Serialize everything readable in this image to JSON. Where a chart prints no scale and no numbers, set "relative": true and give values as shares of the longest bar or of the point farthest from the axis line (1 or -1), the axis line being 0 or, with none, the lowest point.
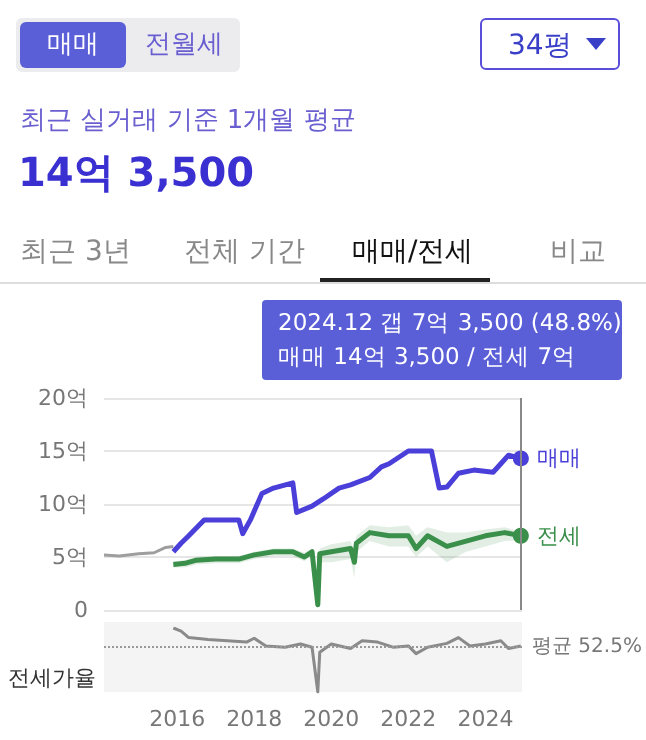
{
  "chart_data": [
    {
      "type": "other",
      "annotations": [
        "매매",
        "전월세",
        "34평",
        "최근 실거래 기준 1개월 평균",
        "14억 3,500",
        "최근 3년",
        "전체 기간",
        "매매/전세",
        "비교"
      ]
    },
    {
      "type": "line",
      "xlim": [
        2014.1,
        2024.95
      ],
      "xticks": [
        2016,
        2018,
        2020,
        2022,
        2024
      ],
      "ylim": [
        0,
        20
      ],
      "yticks": [
        {
          "value": 0,
          "label": "0"
        },
        {
          "value": 5,
          "label": "5억"
        },
        {
          "value": 10,
          "label": "10억"
        },
        {
          "value": 15,
          "label": "15억"
        },
        {
          "value": 20,
          "label": "20억"
        }
      ],
      "tick_labels": "y",
      "grid": "y",
      "legend": false,
      "marker": "none",
      "line_style": "solid",
      "annotations": [
        "2024.12  갭 7억 3,500 (48.8%)",
        "매매 14억 3,500 / 전세 7억"
      ],
      "ref_lines": [
        {
          "axis": "x",
          "value": 2024.92,
          "label": null,
          "color": "#888888"
        }
      ],
      "series": [
        {
          "color": "#9e9e9e",
          "x": [
            2014.1,
            2014.5,
            2015.0,
            2015.4,
            2015.7,
            2015.9
          ],
          "values": [
            5.2,
            5.1,
            5.3,
            5.4,
            5.9,
            6.0
          ]
        },
        {
          "name": "매매",
          "color": "#4a3fd8",
          "x": [
            2015.9,
            2016.1,
            2016.3,
            2016.7,
            2017.0,
            2017.6,
            2017.7,
            2017.9,
            2018.2,
            2018.5,
            2019.0,
            2019.1,
            2019.5,
            2019.8,
            2020.2,
            2020.5,
            2021.0,
            2021.3,
            2021.5,
            2022.0,
            2022.6,
            2022.8,
            2023.0,
            2023.3,
            2023.7,
            2024.2,
            2024.4,
            2024.6,
            2024.92
          ],
          "values": [
            5.5,
            6.3,
            7.0,
            8.5,
            8.5,
            8.5,
            7.2,
            8.5,
            11.0,
            11.5,
            12.0,
            9.2,
            9.8,
            10.5,
            11.5,
            11.8,
            12.5,
            13.5,
            13.8,
            15.0,
            15.0,
            11.5,
            11.6,
            12.9,
            13.2,
            13.0,
            13.8,
            14.6,
            14.3
          ]
        },
        {
          "name": "전세",
          "color": "#3a8f4a",
          "x": [
            2015.9,
            2016.2,
            2016.5,
            2017.0,
            2017.6,
            2018.0,
            2018.5,
            2019.0,
            2019.3,
            2019.5,
            2019.65,
            2019.7,
            2020.0,
            2020.5,
            2020.6,
            2020.65,
            2021.0,
            2021.5,
            2022.0,
            2022.2,
            2022.5,
            2023.0,
            2023.5,
            2024.0,
            2024.5,
            2024.92
          ],
          "values": [
            4.3,
            4.4,
            4.7,
            4.8,
            4.8,
            5.2,
            5.5,
            5.5,
            5.0,
            5.5,
            0.5,
            5.3,
            5.5,
            5.8,
            4.5,
            6.3,
            7.3,
            7.0,
            7.0,
            5.8,
            7.0,
            6.0,
            6.5,
            7.0,
            7.3,
            7.0
          ],
          "lower": [
            4.0,
            4.0,
            4.3,
            4.4,
            4.4,
            4.8,
            5.1,
            5.1,
            4.6,
            5.1,
            0.5,
            4.5,
            4.5,
            4.8,
            3.0,
            5.5,
            6.5,
            6.0,
            6.0,
            5.0,
            6.0,
            4.5,
            5.5,
            6.0,
            6.5,
            6.6
          ],
          "upper": [
            4.6,
            4.7,
            5.0,
            5.1,
            5.1,
            5.5,
            5.8,
            5.8,
            5.4,
            5.8,
            0.5,
            5.8,
            6.2,
            6.5,
            5.5,
            7.0,
            8.0,
            7.8,
            8.0,
            7.0,
            7.8,
            7.3,
            7.3,
            7.6,
            7.8,
            7.4
          ]
        }
      ]
    },
    {
      "type": "line",
      "relative": true,
      "ylabel": "전세가율",
      "xlim": [
        2014.1,
        2024.95
      ],
      "xticks": [
        2016,
        2018,
        2020,
        2022,
        2024
      ],
      "tick_labels": "x",
      "legend": false,
      "marker": "none",
      "ref_lines": [
        {
          "axis": "y",
          "value": 0.7,
          "label": "평균 52.5%",
          "color": "#999999",
          "line_style": "dotted"
        }
      ],
      "series": [
        {
          "color": "#8a8a8a",
          "x": [
            2015.9,
            2016.1,
            2016.3,
            2016.8,
            2017.3,
            2017.8,
            2018.0,
            2018.3,
            2018.8,
            2019.2,
            2019.5,
            2019.65,
            2019.7,
            2020.0,
            2020.5,
            2020.8,
            2021.2,
            2021.6,
            2022.0,
            2022.2,
            2022.5,
            2023.0,
            2023.3,
            2023.6,
            2024.0,
            2024.4,
            2024.6,
            2024.92
          ],
          "values": [
            1.0,
            0.95,
            0.85,
            0.82,
            0.8,
            0.78,
            0.84,
            0.72,
            0.7,
            0.75,
            0.7,
            0.0,
            0.62,
            0.75,
            0.68,
            0.8,
            0.78,
            0.7,
            0.72,
            0.6,
            0.7,
            0.76,
            0.85,
            0.72,
            0.75,
            0.8,
            0.68,
            0.72
          ]
        }
      ]
    }
  ]
}
